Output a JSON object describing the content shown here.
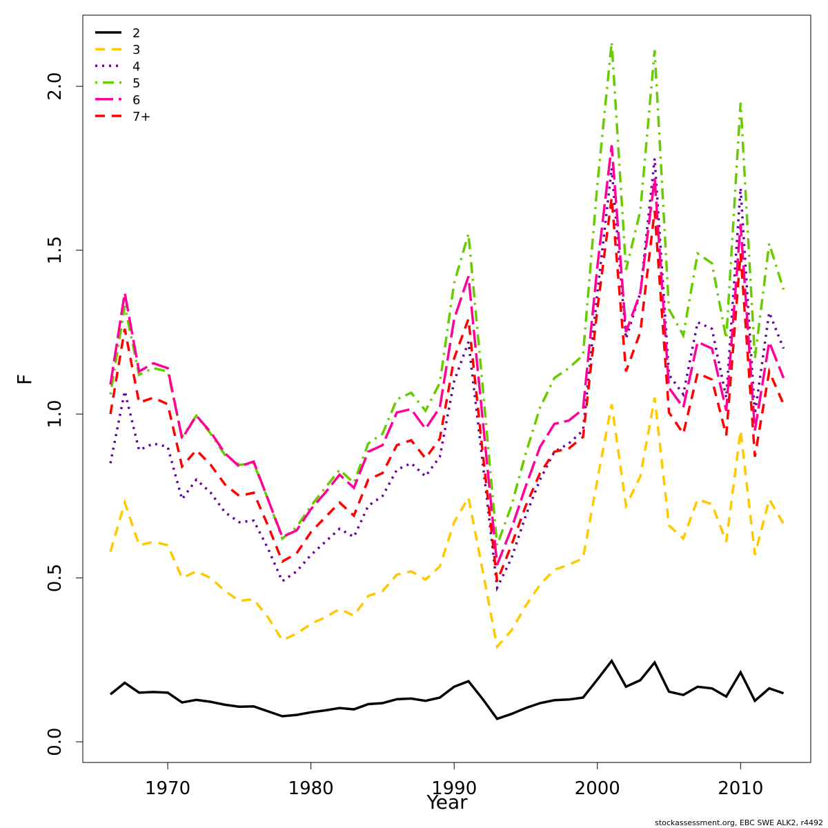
{
  "chart_data": {
    "type": "line",
    "xlabel": "Year",
    "ylabel": "F",
    "footer": "stockassessment.org, EBC SWE ALK2, r4492",
    "x": [
      1966,
      1967,
      1968,
      1969,
      1970,
      1971,
      1972,
      1973,
      1974,
      1975,
      1976,
      1977,
      1978,
      1979,
      1980,
      1981,
      1982,
      1983,
      1984,
      1985,
      1986,
      1987,
      1988,
      1989,
      1990,
      1991,
      1992,
      1993,
      1994,
      1995,
      1996,
      1997,
      1998,
      1999,
      2000,
      2001,
      2002,
      2003,
      2004,
      2005,
      2006,
      2007,
      2008,
      2009,
      2010,
      2011,
      2012,
      2013
    ],
    "xlim": [
      1964.07,
      2014.9
    ],
    "ylim": [
      -0.063,
      2.217
    ],
    "xticks": [
      1970,
      1980,
      1990,
      2000,
      2010
    ],
    "yticks": [
      {
        "value": 0,
        "label": "0.0"
      },
      0.5,
      {
        "value": 1,
        "label": "1.0"
      },
      1.5,
      {
        "value": 2,
        "label": "2.0"
      }
    ],
    "legend": "top-left",
    "series": [
      {
        "name": "2",
        "color": "#000000",
        "dash": "solid",
        "values": [
          0.145,
          0.18,
          0.15,
          0.152,
          0.15,
          0.12,
          0.128,
          0.122,
          0.113,
          0.107,
          0.108,
          0.093,
          0.078,
          0.082,
          0.09,
          0.096,
          0.103,
          0.099,
          0.115,
          0.118,
          0.13,
          0.132,
          0.125,
          0.135,
          0.168,
          0.185,
          0.13,
          0.07,
          0.085,
          0.103,
          0.118,
          0.127,
          0.129,
          0.135,
          0.19,
          0.247,
          0.168,
          0.188,
          0.242,
          0.153,
          0.143,
          0.168,
          0.163,
          0.138,
          0.212,
          0.125,
          0.163,
          0.148
        ]
      },
      {
        "name": "3",
        "color": "#ffc800",
        "dash": "dashed",
        "values": [
          0.58,
          0.73,
          0.6,
          0.61,
          0.6,
          0.5,
          0.52,
          0.5,
          0.46,
          0.43,
          0.435,
          0.38,
          0.31,
          0.33,
          0.36,
          0.38,
          0.405,
          0.385,
          0.445,
          0.46,
          0.51,
          0.52,
          0.495,
          0.535,
          0.67,
          0.745,
          0.52,
          0.29,
          0.34,
          0.415,
          0.48,
          0.525,
          0.54,
          0.56,
          0.8,
          1.03,
          0.72,
          0.81,
          1.05,
          0.66,
          0.62,
          0.74,
          0.725,
          0.61,
          0.95,
          0.57,
          0.74,
          0.665
        ]
      },
      {
        "name": "4",
        "color": "#660099",
        "dash": "dotted",
        "values": [
          0.85,
          1.07,
          0.89,
          0.91,
          0.9,
          0.74,
          0.8,
          0.76,
          0.7,
          0.67,
          0.675,
          0.59,
          0.49,
          0.52,
          0.57,
          0.61,
          0.65,
          0.625,
          0.72,
          0.75,
          0.83,
          0.85,
          0.81,
          0.87,
          1.1,
          1.22,
          0.85,
          0.47,
          0.56,
          0.69,
          0.8,
          0.885,
          0.91,
          0.95,
          1.37,
          1.75,
          1.23,
          1.37,
          1.78,
          1.12,
          1.06,
          1.28,
          1.26,
          1.05,
          1.69,
          1.0,
          1.31,
          1.2
        ]
      },
      {
        "name": "5",
        "color": "#66cc00",
        "dash": "dotdash",
        "values": [
          1.06,
          1.33,
          1.12,
          1.14,
          1.13,
          0.93,
          0.995,
          0.94,
          0.875,
          0.845,
          0.85,
          0.74,
          0.62,
          0.655,
          0.72,
          0.775,
          0.83,
          0.79,
          0.91,
          0.94,
          1.045,
          1.065,
          1.01,
          1.095,
          1.4,
          1.55,
          1.08,
          0.6,
          0.72,
          0.88,
          1.02,
          1.11,
          1.14,
          1.18,
          1.7,
          2.135,
          1.44,
          1.62,
          2.11,
          1.32,
          1.24,
          1.49,
          1.46,
          1.23,
          1.95,
          1.17,
          1.52,
          1.38
        ]
      },
      {
        "name": "6",
        "color": "#ff0099",
        "dash": "longdash",
        "values": [
          1.09,
          1.37,
          1.13,
          1.155,
          1.14,
          0.925,
          0.995,
          0.945,
          0.88,
          0.84,
          0.855,
          0.74,
          0.625,
          0.645,
          0.71,
          0.76,
          0.815,
          0.775,
          0.885,
          0.905,
          1.005,
          1.015,
          0.955,
          1.02,
          1.29,
          1.42,
          0.98,
          0.54,
          0.65,
          0.78,
          0.9,
          0.97,
          0.98,
          1.015,
          1.45,
          1.82,
          1.25,
          1.37,
          1.72,
          1.08,
          1.02,
          1.22,
          1.2,
          1.01,
          1.58,
          0.95,
          1.22,
          1.11
        ]
      },
      {
        "name": "7+",
        "color": "#ff0000",
        "dash": "dashed",
        "values": [
          1.0,
          1.26,
          1.035,
          1.05,
          1.03,
          0.84,
          0.89,
          0.845,
          0.785,
          0.75,
          0.76,
          0.66,
          0.55,
          0.575,
          0.64,
          0.685,
          0.73,
          0.69,
          0.8,
          0.82,
          0.905,
          0.92,
          0.865,
          0.925,
          1.17,
          1.29,
          0.88,
          0.49,
          0.6,
          0.72,
          0.82,
          0.885,
          0.895,
          0.93,
          1.32,
          1.66,
          1.13,
          1.25,
          1.62,
          1.005,
          0.94,
          1.125,
          1.105,
          0.935,
          1.49,
          0.87,
          1.13,
          1.03
        ]
      }
    ]
  }
}
